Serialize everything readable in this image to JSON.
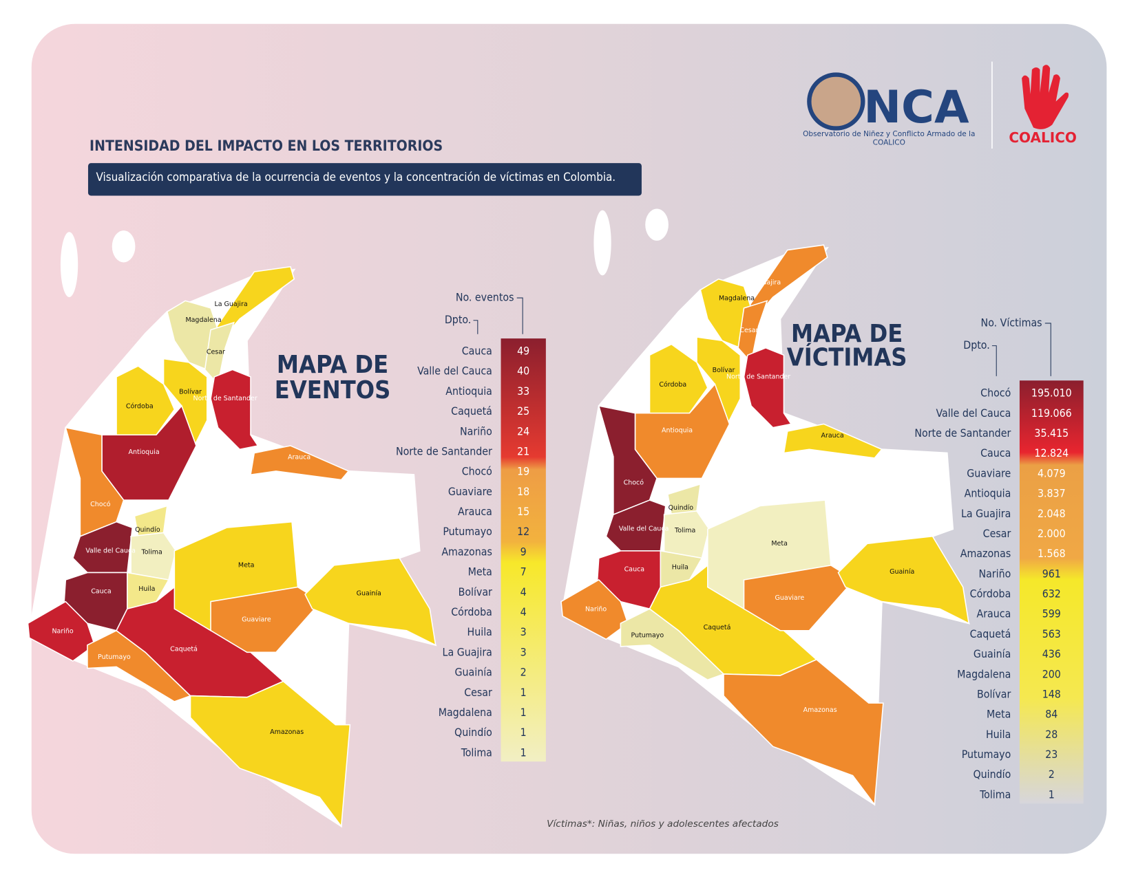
{
  "header": {
    "title": "INTENSIDAD DEL IMPACTO EN LOS TERRITORIOS",
    "subtitle": "Visualización comparativa de la ocurrencia de eventos y la concentración de víctimas en Colombia."
  },
  "logos": {
    "onca": "NCA",
    "onca_caption_1": "Observatorio de Niñez y Conflicto Armado de la",
    "onca_caption_2": "COALICO",
    "coalico": "COALICO"
  },
  "events": {
    "title_1": "MAPA DE",
    "title_2": "EVENTOS",
    "col_dept": "Dpto.",
    "col_value": "No. eventos",
    "rows": [
      [
        "Cauca",
        49
      ],
      [
        "Valle del Cauca",
        40
      ],
      [
        "Antioquia",
        33
      ],
      [
        "Caquetá",
        25
      ],
      [
        "Nariño",
        24
      ],
      [
        "Norte de Santander",
        21
      ],
      [
        "Chocó",
        19
      ],
      [
        "Guaviare",
        18
      ],
      [
        "Arauca",
        15
      ],
      [
        "Putumayo",
        12
      ],
      [
        "Amazonas",
        9
      ],
      [
        "Meta",
        7
      ],
      [
        "Bolívar",
        4
      ],
      [
        "Córdoba",
        4
      ],
      [
        "Huila",
        3
      ],
      [
        "La Guajira",
        3
      ],
      [
        "Guainía",
        2
      ],
      [
        "Cesar",
        1
      ],
      [
        "Magdalena",
        1
      ],
      [
        "Quindío",
        1
      ],
      [
        "Tolima",
        1
      ]
    ],
    "regions": [
      {
        "name": "La Guajira",
        "color": "#f7d51d"
      },
      {
        "name": "Magdalena",
        "color": "#ece7a6"
      },
      {
        "name": "Cesar",
        "color": "#ece7a6"
      },
      {
        "name": "Bolívar",
        "color": "#f7d51d"
      },
      {
        "name": "Norte de Santander",
        "color": "#c8202f"
      },
      {
        "name": "Córdoba",
        "color": "#f7d51d"
      },
      {
        "name": "Antioquia",
        "color": "#b01e2d"
      },
      {
        "name": "Arauca",
        "color": "#f08a2c"
      },
      {
        "name": "Chocó",
        "color": "#f08a2c"
      },
      {
        "name": "Valle del Cauca",
        "color": "#8b1f2e"
      },
      {
        "name": "Quindío",
        "color": "#f3e88a"
      },
      {
        "name": "Tolima",
        "color": "#f2efc0"
      },
      {
        "name": "Cauca",
        "color": "#8b1f2e"
      },
      {
        "name": "Huila",
        "color": "#f3e88a"
      },
      {
        "name": "Nariño",
        "color": "#c8202f"
      },
      {
        "name": "Putumayo",
        "color": "#f08a2c"
      },
      {
        "name": "Caquetá",
        "color": "#c8202f"
      },
      {
        "name": "Meta",
        "color": "#f7d51d"
      },
      {
        "name": "Guaviare",
        "color": "#f08a2c"
      },
      {
        "name": "Guainía",
        "color": "#f7d51d"
      },
      {
        "name": "Amazonas",
        "color": "#f7d51d"
      }
    ]
  },
  "victims": {
    "title_1": "MAPA DE",
    "title_2": "VÍCTIMAS",
    "col_dept": "Dpto.",
    "col_value": "No. Víctimas",
    "rows": [
      [
        "Chocó",
        "195.010"
      ],
      [
        "Valle del Cauca",
        "119.066"
      ],
      [
        "Norte de Santander",
        "35.415"
      ],
      [
        "Cauca",
        "12.824"
      ],
      [
        "Guaviare",
        "4.079"
      ],
      [
        "Antioquia",
        "3.837"
      ],
      [
        "La Guajira",
        "2.048"
      ],
      [
        "Cesar",
        "2.000"
      ],
      [
        "Amazonas",
        "1.568"
      ],
      [
        "Nariño",
        "961"
      ],
      [
        "Córdoba",
        "632"
      ],
      [
        "Arauca",
        "599"
      ],
      [
        "Caquetá",
        "563"
      ],
      [
        "Guainía",
        "436"
      ],
      [
        "Magdalena",
        "200"
      ],
      [
        "Bolívar",
        "148"
      ],
      [
        "Meta",
        "84"
      ],
      [
        "Huila",
        "28"
      ],
      [
        "Putumayo",
        "23"
      ],
      [
        "Quindío",
        "2"
      ],
      [
        "Tolima",
        "1"
      ]
    ],
    "regions": [
      {
        "name": "La Guajira",
        "color": "#f08a2c"
      },
      {
        "name": "Magdalena",
        "color": "#f7d51d"
      },
      {
        "name": "Cesar",
        "color": "#f08a2c"
      },
      {
        "name": "Bolívar",
        "color": "#f7d51d"
      },
      {
        "name": "Norte de Santander",
        "color": "#c8202f"
      },
      {
        "name": "Córdoba",
        "color": "#f7d51d"
      },
      {
        "name": "Antioquia",
        "color": "#f08a2c"
      },
      {
        "name": "Arauca",
        "color": "#f7d51d"
      },
      {
        "name": "Chocó",
        "color": "#8b1f2e"
      },
      {
        "name": "Valle del Cauca",
        "color": "#8b1f2e"
      },
      {
        "name": "Quindío",
        "color": "#ece7a6"
      },
      {
        "name": "Tolima",
        "color": "#f2efc0"
      },
      {
        "name": "Cauca",
        "color": "#c8202f"
      },
      {
        "name": "Huila",
        "color": "#ece7a6"
      },
      {
        "name": "Nariño",
        "color": "#f08a2c"
      },
      {
        "name": "Putumayo",
        "color": "#ece7a6"
      },
      {
        "name": "Caquetá",
        "color": "#f7d51d"
      },
      {
        "name": "Meta",
        "color": "#f2efc0"
      },
      {
        "name": "Guaviare",
        "color": "#f08a2c"
      },
      {
        "name": "Guainía",
        "color": "#f7d51d"
      },
      {
        "name": "Amazonas",
        "color": "#f08a2c"
      }
    ]
  },
  "footnote": "Víctimas*: Niñas, niños y adolescentes afectados"
}
